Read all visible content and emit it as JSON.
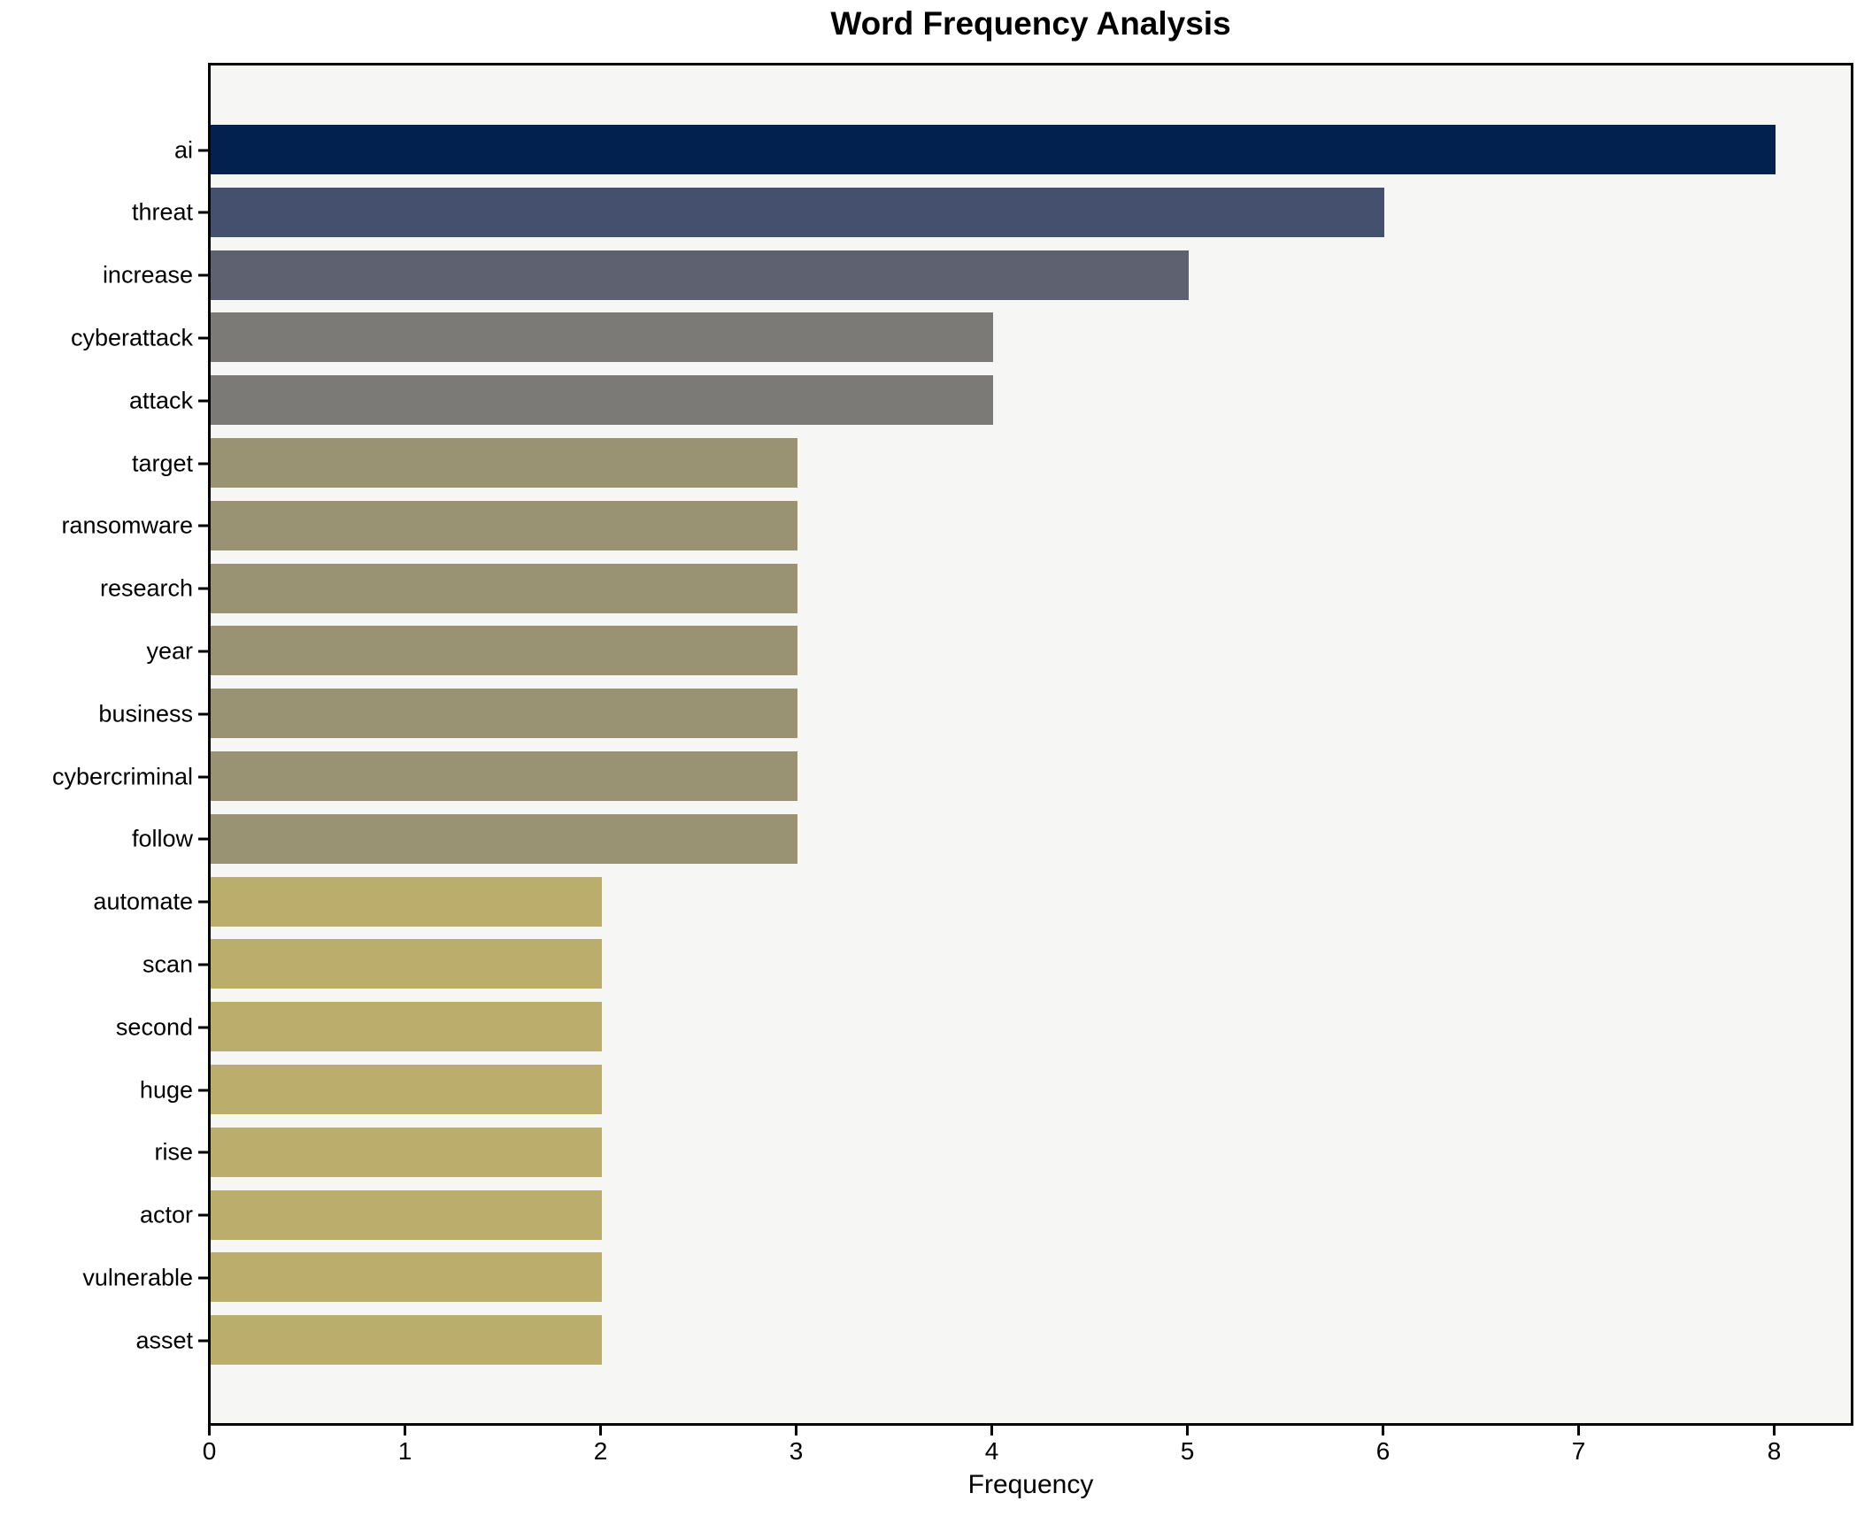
{
  "title": "Word Frequency Analysis",
  "chart_data": {
    "type": "bar",
    "orientation": "horizontal",
    "title": "Word Frequency Analysis",
    "xlabel": "Frequency",
    "ylabel": "",
    "categories": [
      "ai",
      "threat",
      "increase",
      "cyberattack",
      "attack",
      "target",
      "ransomware",
      "research",
      "year",
      "business",
      "cybercriminal",
      "follow",
      "automate",
      "scan",
      "second",
      "huge",
      "rise",
      "actor",
      "vulnerable",
      "asset"
    ],
    "values": [
      8,
      6,
      5,
      4,
      4,
      3,
      3,
      3,
      3,
      3,
      3,
      3,
      2,
      2,
      2,
      2,
      2,
      2,
      2,
      2
    ],
    "bar_colors": [
      "#02214F",
      "#454F6E",
      "#5D6170",
      "#7B7A77",
      "#7B7A77",
      "#999273",
      "#999273",
      "#999273",
      "#999273",
      "#999273",
      "#999273",
      "#999273",
      "#BBAD6C",
      "#BBAD6C",
      "#BBAD6C",
      "#BBAD6C",
      "#BBAD6C",
      "#BBAD6C",
      "#BBAD6C",
      "#BBAD6C"
    ],
    "x_ticks": [
      0,
      1,
      2,
      3,
      4,
      5,
      6,
      7,
      8
    ],
    "xlim": [
      0,
      8.4
    ],
    "grid": false,
    "legend": "none",
    "plot_background": "#F6F6F5",
    "figure_background": "#FFFFFF",
    "spine_color": "#000000",
    "title_color": "#000000",
    "bar_height_fraction": 0.8
  }
}
